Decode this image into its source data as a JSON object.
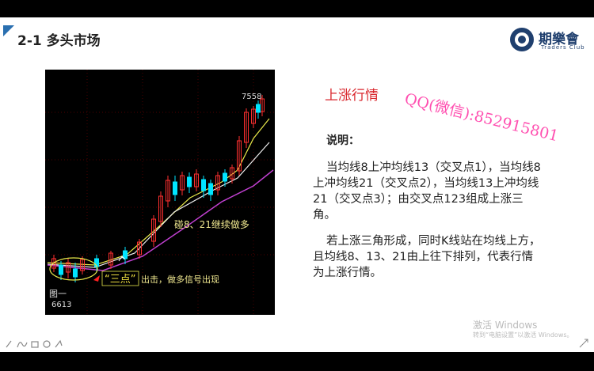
{
  "header": {
    "title": "2-1 多头市场",
    "logo": {
      "name": "期樂會",
      "subtitle": "Traders Club"
    }
  },
  "figure": {
    "high_label": "7558",
    "low_label": "6613",
    "caption": "图一",
    "annotation": "碰8、21继续做多",
    "signal": {
      "quote": "“三点”",
      "text": "出击，做多信号出现"
    }
  },
  "content": {
    "heading": "上涨行情",
    "note_label": "说明：",
    "paragraphs": [
      "当均线8上冲均线13（交叉点1），当均线8上冲均线21（交叉点2），当均线13上冲均线21（交叉点3）；由交叉点123组成上涨三角。",
      "若上涨三角形成，同时K线站在均线上方，且均线8、13、21由上往下排列，代表行情为上涨行情。"
    ]
  },
  "watermark": "QQ(微信):852915801",
  "activation": {
    "title": "激活 Windows",
    "hint": "转到“电脑设置”以激活 Windows。"
  }
}
